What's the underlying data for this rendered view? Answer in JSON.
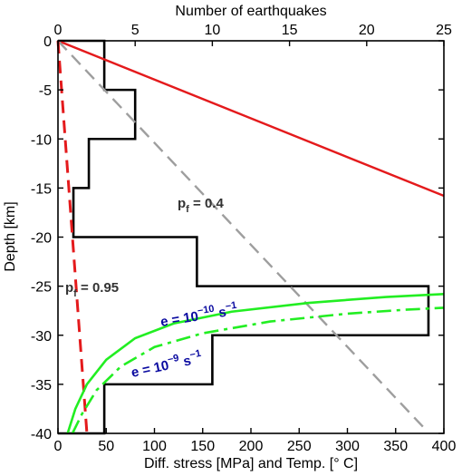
{
  "chart_data": {
    "type": "line",
    "top_axis": {
      "label": "Number of earthquakes",
      "range": [
        0,
        25
      ],
      "ticks": [
        "0",
        "5",
        "10",
        "15",
        "20",
        "25"
      ]
    },
    "bottom_axis": {
      "label": "Diff. stress [MPa] and Temp. [° C]",
      "range": [
        0,
        400
      ],
      "ticks": [
        "0",
        "50",
        "100",
        "150",
        "200",
        "250",
        "300",
        "350",
        "400"
      ]
    },
    "left_axis": {
      "label": "Depth [km]",
      "range": [
        -40,
        0
      ],
      "ticks": [
        "0",
        "-5",
        "-10",
        "-15",
        "-20",
        "-25",
        "-30",
        "-35",
        "-40"
      ]
    },
    "histogram": {
      "bins_depth": [
        [
          0,
          -5
        ],
        [
          -5,
          -10
        ],
        [
          -10,
          -15
        ],
        [
          -15,
          -20
        ],
        [
          -20,
          -25
        ],
        [
          -25,
          -30
        ],
        [
          -30,
          -35
        ],
        [
          -35,
          -40
        ]
      ],
      "counts": [
        3,
        5,
        2,
        1,
        9,
        24,
        10,
        3
      ],
      "color": "#000000"
    },
    "lines": [
      {
        "id": "temperature",
        "style": "solid",
        "color": "#e41a1c",
        "x": [
          0,
          400
        ],
        "y": [
          0,
          -15.8
        ]
      },
      {
        "id": "pf_0.4",
        "style": "dashed",
        "color": "#9e9e9e",
        "x": [
          0,
          380
        ],
        "y": [
          0,
          -39.5
        ]
      },
      {
        "id": "pf_0.95",
        "style": "dashed",
        "color": "#e41a1c",
        "x": [
          0,
          30
        ],
        "y": [
          0,
          -40
        ]
      }
    ],
    "creep_curves": [
      {
        "id": "e_1e-10",
        "style": "solid",
        "color": "#22ee22",
        "x": [
          10,
          18,
          30,
          50,
          80,
          120,
          180,
          260,
          340,
          400
        ],
        "y": [
          -40,
          -37.5,
          -35,
          -32.5,
          -30.3,
          -28.8,
          -27.6,
          -26.7,
          -26.1,
          -25.8
        ]
      },
      {
        "id": "e_1e-9",
        "style": "dashdot",
        "color": "#22ee22",
        "x": [
          15,
          25,
          40,
          65,
          100,
          150,
          220,
          300,
          360,
          400
        ],
        "y": [
          -40,
          -38,
          -35.6,
          -33.2,
          -31.2,
          -29.8,
          -28.6,
          -27.8,
          -27.4,
          -27.2
        ]
      }
    ],
    "annotations": [
      {
        "id": "pf_04",
        "main": "p",
        "sub": "f",
        "rest": " = 0.4",
        "color": "#333333"
      },
      {
        "id": "pf_095",
        "main": "p",
        "sub": "f",
        "rest": " = 0.95",
        "color": "#333333"
      },
      {
        "id": "e10",
        "main": "e = 10",
        "sup": "−10",
        "rest": " s",
        "sup2": "−1",
        "color": "#0a0aa0"
      },
      {
        "id": "e9",
        "main": "e = 10",
        "sup": "−9",
        "rest": " s",
        "sup2": "−1",
        "color": "#0a0aa0"
      }
    ],
    "grid": false
  }
}
